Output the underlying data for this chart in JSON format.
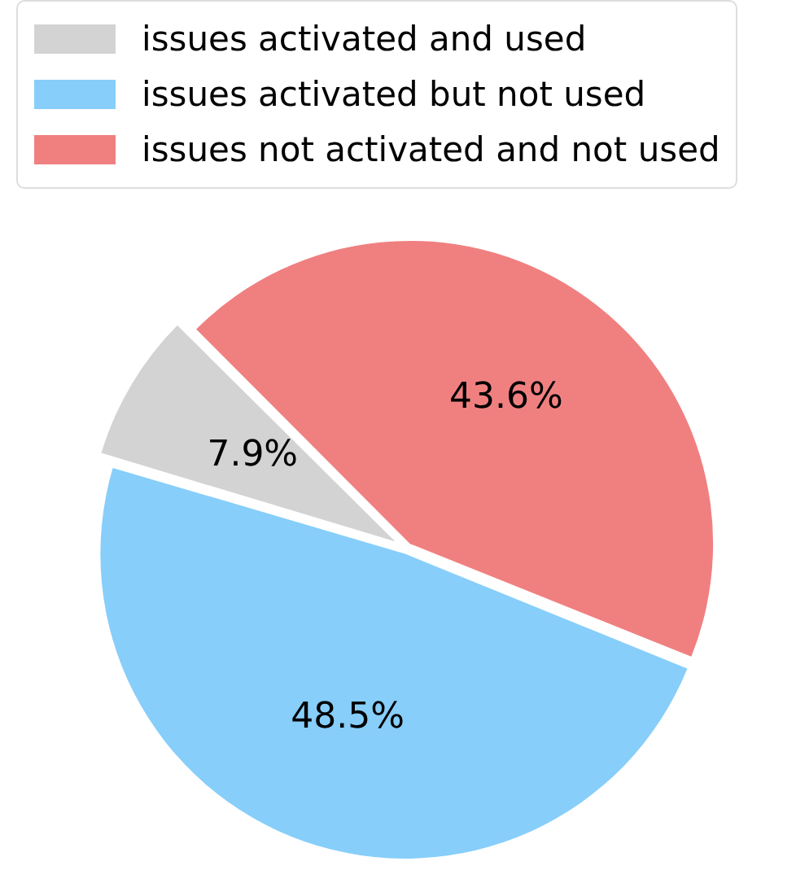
{
  "chart_data": {
    "type": "pie",
    "categories": [
      "issues activated and used",
      "issues activated but not used",
      "issues not activated and not used"
    ],
    "values": [
      7.9,
      48.5,
      43.6
    ],
    "colors": [
      "#d3d3d3",
      "#87cefa",
      "#f08080"
    ],
    "value_labels": [
      "7.9%",
      "48.5%",
      "43.6%"
    ],
    "legend": "top left"
  }
}
